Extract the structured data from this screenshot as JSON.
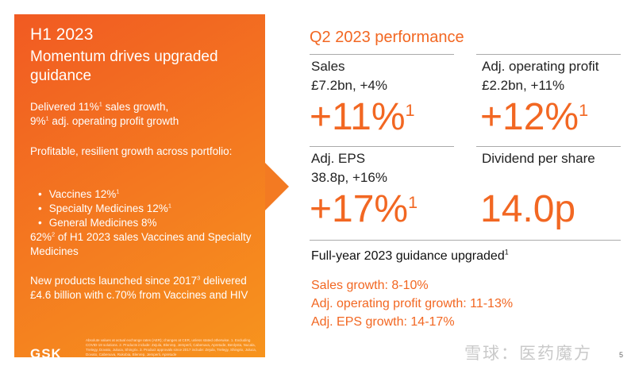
{
  "left": {
    "title": "H1 2023",
    "subtitle": "Momentum drives upgraded guidance",
    "p1_a": "Delivered 11%",
    "p1_a_sup": "1",
    "p1_b": " sales growth,",
    "p1_c": "9%",
    "p1_c_sup": "1",
    "p1_d": " adj. operating profit growth",
    "p2": "Profitable, resilient growth across portfolio:",
    "list": [
      {
        "text": "Vaccines 12%",
        "sup": "1"
      },
      {
        "text": "Specialty Medicines 12%",
        "sup": "1"
      },
      {
        "text": "General Medicines 8%",
        "sup": ""
      }
    ],
    "p3_a": "62%",
    "p3_sup": "2",
    "p3_b": " of H1 2023 sales Vaccines and Specialty Medicines",
    "p4_a": "New products launched since 2017",
    "p4_sup": "3",
    "p4_b": " delivered £4.6 billion with c.70% from Vaccines and HIV",
    "footnote": "Absolute values at actual exchange rates (AER); changes at CER, unless stated otherwise. 1. Excluding COVID-19 solutions. 2. Products include: Zejula, Blenrep, Jemperli, Cabenuva, Apretude, Benlysta, Nucala, Trelegy, Dovato, Juluca, Shingrix. 3. Product approvals since 2017 include: Zejula, Trelegy, Shingrix, Juluca, Dovato, Cabenuva, Rukobia, Blenrep, Jemperli, Apretude",
    "logo": "GSK"
  },
  "right": {
    "title": "Q2 2023 performance",
    "sales": {
      "label": "Sales",
      "value": "£7.2bn, +4%",
      "big": "+11%",
      "sup": "1"
    },
    "aop": {
      "label": "Adj. operating profit",
      "value": "£2.2bn, +11%",
      "big": "+12%",
      "sup": "1"
    },
    "eps": {
      "label": "Adj. EPS",
      "value": "38.8p, +16%",
      "big": "+17%",
      "sup": "1"
    },
    "dps": {
      "label": "Dividend per share",
      "big": "14.0p"
    },
    "guidance": {
      "title": "Full-year 2023 guidance upgraded",
      "sup": "1",
      "items": [
        "Sales growth: 8-10%",
        "Adj. operating profit growth: 11-13%",
        "Adj. EPS growth: 14-17%"
      ]
    }
  },
  "watermark": "雪球：医药魔方",
  "page_number": "5"
}
